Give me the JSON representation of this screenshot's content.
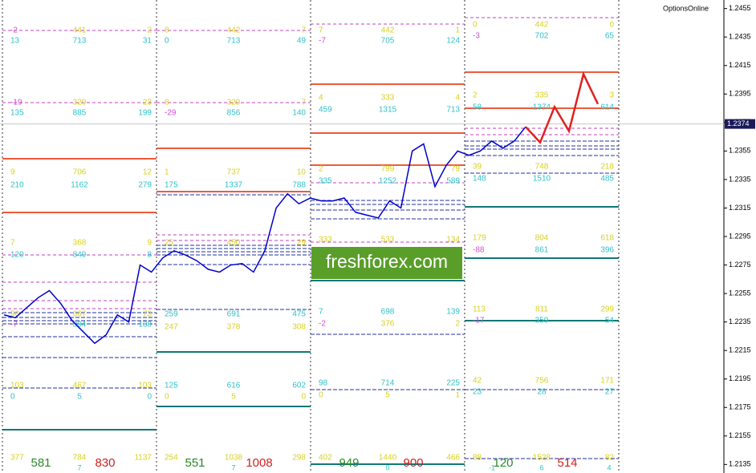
{
  "chart_data": {
    "type": "line",
    "brand": "OptionsOnline",
    "watermark": "freshforex.com",
    "current_price": 1.2374,
    "ylim": [
      1.2129,
      1.2461
    ],
    "yticks": [
      1.2455,
      1.2435,
      1.2415,
      1.2395,
      1.2375,
      1.2355,
      1.2335,
      1.2315,
      1.2295,
      1.2275,
      1.2255,
      1.2235,
      1.2215,
      1.2195,
      1.2175,
      1.2155,
      1.2135
    ],
    "series": [
      {
        "name": "EURUSD",
        "color": "#0000cc",
        "values": [
          1.224,
          1.2238,
          1.2245,
          1.2252,
          1.2257,
          1.2248,
          1.2236,
          1.2228,
          1.222,
          1.2226,
          1.224,
          1.2235,
          1.2275,
          1.227,
          1.228,
          1.2285,
          1.2282,
          1.2278,
          1.2272,
          1.227,
          1.2275,
          1.2276,
          1.227,
          1.2285,
          1.2315,
          1.2325,
          1.2318,
          1.2322,
          1.232,
          1.232,
          1.2322,
          1.2312,
          1.231,
          1.2308,
          1.232,
          1.2315,
          1.2355,
          1.236,
          1.233,
          1.2345,
          1.2355,
          1.2352,
          1.2355,
          1.2362,
          1.2357,
          1.2362,
          1.2372
        ]
      },
      {
        "name": "Forecast",
        "color": "#e02020",
        "values": [
          1.2372,
          1.2361,
          1.2386,
          1.2369,
          1.2409,
          1.2388
        ]
      }
    ],
    "panels": [
      {
        "rows": [
          [
            "-2",
            "441",
            "2"
          ],
          [
            "13",
            "713",
            "31"
          ],
          [
            "-19",
            "329",
            "23"
          ],
          [
            "135",
            "885",
            "199"
          ],
          [
            "9",
            "706",
            "12"
          ],
          [
            "210",
            "1162",
            "279"
          ],
          [
            "7",
            "368",
            "9"
          ],
          [
            "120",
            "849",
            "8"
          ],
          [
            "96",
            "667",
            "73"
          ],
          [
            "-7",
            "394",
            "138"
          ],
          [
            "103",
            "467",
            "103"
          ],
          [
            "0",
            "5",
            "0"
          ]
        ],
        "totals": [
          "377",
          "784",
          "1137"
        ],
        "up": "581",
        "down": "830",
        "note": [
          "7"
        ]
      },
      {
        "rows": [
          [
            "8",
            "442",
            "7"
          ],
          [
            "0",
            "713",
            "49"
          ],
          [
            "8",
            "329",
            "7"
          ],
          [
            "-29",
            "856",
            "140"
          ],
          [
            "1",
            "737",
            "10"
          ],
          [
            "175",
            "1337",
            "788"
          ],
          [
            "25",
            "450",
            "29"
          ],
          [
            "259",
            "691",
            "475"
          ],
          [
            "247",
            "378",
            "308"
          ],
          [
            "125",
            "616",
            "602"
          ],
          [
            "0",
            "5",
            "0"
          ]
        ],
        "totals": [
          "254",
          "1038",
          "298"
        ],
        "up": "551",
        "down": "1008",
        "note": [
          "7"
        ]
      },
      {
        "rows": [
          [
            "7",
            "442",
            "1"
          ],
          [
            "-7",
            "705",
            "124"
          ],
          [
            "4",
            "333",
            "4"
          ],
          [
            "459",
            "1315",
            "713"
          ],
          [
            "2",
            "799",
            "79"
          ],
          [
            "335",
            "1252",
            "589"
          ],
          [
            "333",
            "533",
            "134"
          ],
          [
            "7",
            "698",
            "139"
          ],
          [
            "-2",
            "376",
            "2"
          ],
          [
            "98",
            "714",
            "225"
          ],
          [
            "0",
            "5",
            "1"
          ]
        ],
        "totals": [
          "402",
          "1440",
          "466"
        ],
        "up": "949",
        "down": "900",
        "note": [
          "0"
        ]
      },
      {
        "rows": [
          [
            "0",
            "442",
            "0"
          ],
          [
            "-3",
            "702",
            "65"
          ],
          [
            "2",
            "335",
            "3"
          ],
          [
            "58",
            "1374",
            "614"
          ],
          [
            "39",
            "748",
            "218"
          ],
          [
            "148",
            "1510",
            "485"
          ],
          [
            "179",
            "804",
            "618"
          ],
          [
            "-88",
            "861",
            "396"
          ],
          [
            "113",
            "811",
            "299"
          ],
          [
            "-17",
            "359",
            "54"
          ],
          [
            "42",
            "756",
            "171"
          ],
          [
            "23",
            "28",
            "27"
          ]
        ],
        "totals": [
          "88",
          "1528",
          "82"
        ],
        "up": "120",
        "down": "514",
        "note": [
          "-1",
          "6",
          "4"
        ]
      }
    ]
  }
}
